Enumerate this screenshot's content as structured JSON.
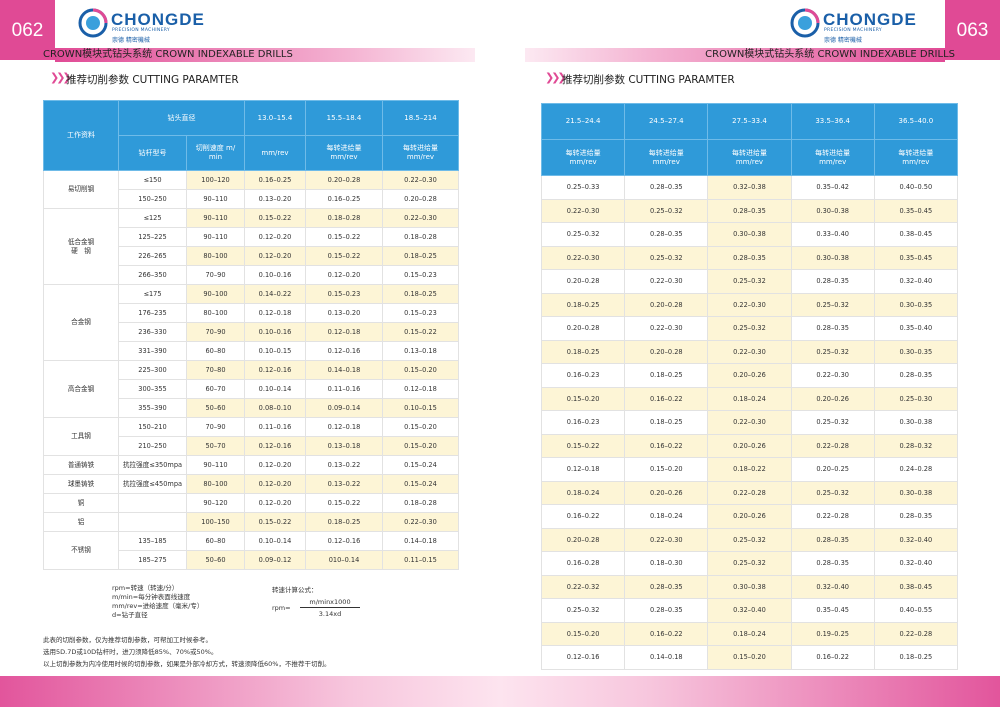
{
  "left": {
    "page_number": "062",
    "logo": {
      "brand": "CHONGDE",
      "tagline": "PRECISION MACHINERY",
      "cn": "崇德 精密機械"
    },
    "header_bar": "CROWN模块式钻头系统  CROWN INDEXABLE DRILLS",
    "section_title": "推荐切削参数 CUTTING PARAMTER",
    "table": {
      "header": {
        "material": "工作资料",
        "diameter": "钻头直径",
        "ranges": [
          "13.0–15.4",
          "15.5–18.4",
          "18.5–214"
        ],
        "shank": "钻杆型号",
        "speed": "切削速度 m/\nmin",
        "units": [
          "mm/rev",
          "每转进给量\nmm/rev",
          "每转进给量\nmm/rev"
        ]
      },
      "groups": [
        {
          "material": "易切削钢",
          "rows": [
            [
              "≤150",
              "100–120",
              "0.16–0.25",
              "0.20–0.28",
              "0.22–0.30"
            ],
            [
              "150–250",
              "90–110",
              "0.13–0.20",
              "0.16–0.25",
              "0.20–0.28"
            ]
          ]
        },
        {
          "material": "低合金钢\n硬　钢",
          "rows": [
            [
              "≤125",
              "90–110",
              "0.15–0.22",
              "0.18–0.28",
              "0.22–0.30"
            ],
            [
              "125–225",
              "90–110",
              "0.12–0.20",
              "0.15–0.22",
              "0.18–0.28"
            ],
            [
              "226–265",
              "80–100",
              "0.12–0.20",
              "0.15–0.22",
              "0.18–0.25"
            ],
            [
              "266–350",
              "70–90",
              "0.10–0.16",
              "0.12–0.20",
              "0.15–0.23"
            ]
          ]
        },
        {
          "material": "合金钢",
          "rows": [
            [
              "≤175",
              "90–100",
              "0.14–0.22",
              "0.15–0.23",
              "0.18–0.25"
            ],
            [
              "176–235",
              "80–100",
              "0.12–0.18",
              "0.13–0.20",
              "0.15–0.23"
            ],
            [
              "236–330",
              "70–90",
              "0.10–0.16",
              "0.12–0.18",
              "0.15–0.22"
            ],
            [
              "331–390",
              "60–80",
              "0.10–0.15",
              "0.12–0.16",
              "0.13–0.18"
            ]
          ]
        },
        {
          "material": "高合金钢",
          "rows": [
            [
              "225–300",
              "70–80",
              "0.12–0.16",
              "0.14–0.18",
              "0.15–0.20"
            ],
            [
              "300–355",
              "60–70",
              "0.10–0.14",
              "0.11–0.16",
              "0.12–0.18"
            ],
            [
              "355–390",
              "50–60",
              "0.08–0.10",
              "0.09–0.14",
              "0.10–0.15"
            ]
          ]
        },
        {
          "material": "工具钢",
          "rows": [
            [
              "150–210",
              "70–90",
              "0.11–0.16",
              "0.12–0.18",
              "0.15–0.20"
            ],
            [
              "210–250",
              "50–70",
              "0.12–0.16",
              "0.13–0.18",
              "0.15–0.20"
            ]
          ]
        },
        {
          "material": "普通铸铁",
          "rows": [
            [
              "抗拉强度≤350mpa",
              "90–110",
              "0.12–0.20",
              "0.13–0.22",
              "0.15–0.24"
            ]
          ]
        },
        {
          "material": "球墨铸铁",
          "rows": [
            [
              "抗拉强度≤450mpa",
              "80–100",
              "0.12–0.20",
              "0.13–0.22",
              "0.15–0.24"
            ]
          ]
        },
        {
          "material": "铜",
          "rows": [
            [
              null,
              "90–120",
              "0.12–0.20",
              "0.15–0.22",
              "0.18–0.28"
            ]
          ]
        },
        {
          "material": "铝",
          "rows": [
            [
              null,
              "100–150",
              "0.15–0.22",
              "0.18–0.25",
              "0.22–0.30"
            ]
          ]
        },
        {
          "material": "不锈钢",
          "rows": [
            [
              "135–185",
              "60–80",
              "0.10–0.14",
              "0.12–0.16",
              "0.14–0.18"
            ],
            [
              "185–275",
              "50–60",
              "0.09–0.12",
              "010–0.14",
              "0.11–0.15"
            ]
          ]
        }
      ]
    },
    "legend": [
      "rpm=转速（转速/分）",
      "m/min=每分钟表面线速度",
      "mm/rev=进给速度（毫米/专）",
      "d=钻子直径"
    ],
    "formula": {
      "label": "转速计算公式：",
      "lhs": "rpm=",
      "numerator": "m/minx1000",
      "denominator": "3.14xd"
    },
    "notes": [
      "此表的切削参数，仅为推荐切削参数，可帮加工时候参考。",
      "选用5D.7D或10D钻杆时，进刀须降低85%、70%或50%。",
      "以上切削参数为内冷使用时候的切削参数，如果是外部冷却方式，转速须降低60%，不推荐干切削。"
    ]
  },
  "right": {
    "page_number": "063",
    "logo": {
      "brand": "CHONGDE",
      "tagline": "PRECISION MACHINERY",
      "cn": "崇德 精密機械"
    },
    "header_bar": "CROWN模块式钻头系统  CROWN INDEXABLE DRILLS",
    "section_title": "推荐切削参数 CUTTING PARAMTER",
    "table": {
      "ranges": [
        "21.5–24.4",
        "24.5–27.4",
        "27.5–33.4",
        "33.5–36.4",
        "36.5–40.0"
      ],
      "units": [
        "每转进给量\nmm/rev",
        "每转进给量\nmm/rev",
        "每转进给量\nmm/rev",
        "每转进给量\nmm/rev",
        "每转进给量\nmm/rev"
      ],
      "rows": [
        [
          "0.25–0.33",
          "0.28–0.35",
          "0.32–0.38",
          "0.35–0.42",
          "0.40–0.50"
        ],
        [
          "0.22–0.30",
          "0.25–0.32",
          "0.28–0.35",
          "0.30–0.38",
          "0.35–0.45"
        ],
        [
          "0.25–0.32",
          "0.28–0.35",
          "0.30–0.38",
          "0.33–0.40",
          "0.38–0.45"
        ],
        [
          "0.22–0.30",
          "0.25–0.32",
          "0.28–0.35",
          "0.30–0.38",
          "0.35–0.45"
        ],
        [
          "0.20–0.28",
          "0.22–0.30",
          "0.25–0.32",
          "0.28–0.35",
          "0.32–0.40"
        ],
        [
          "0.18–0.25",
          "0.20–0.28",
          "0.22–0.30",
          "0.25–0.32",
          "0.30–0.35"
        ],
        [
          "0.20–0.28",
          "0.22–0.30",
          "0.25–0.32",
          "0.28–0.35",
          "0.35–0.40"
        ],
        [
          "0.18–0.25",
          "0.20–0.28",
          "0.22–0.30",
          "0.25–0.32",
          "0.30–0.35"
        ],
        [
          "0.16–0.23",
          "0.18–0.25",
          "0.20–0.26",
          "0.22–0.30",
          "0.28–0.35"
        ],
        [
          "0.15–0.20",
          "0.16–0.22",
          "0.18–0.24",
          "0.20–0.26",
          "0.25–0.30"
        ],
        [
          "0.16–0.23",
          "0.18–0.25",
          "0.22–0.30",
          "0.25–0.32",
          "0.30–0.38"
        ],
        [
          "0.15–0.22",
          "0.16–0.22",
          "0.20–0.26",
          "0.22–0.28",
          "0.28–0.32"
        ],
        [
          "0.12–0.18",
          "0.15–0.20",
          "0.18–0.22",
          "0.20–0.25",
          "0.24–0.28"
        ],
        [
          "0.18–0.24",
          "0.20–0.26",
          "0.22–0.28",
          "0.25–0.32",
          "0.30–0.38"
        ],
        [
          "0.16–0.22",
          "0.18–0.24",
          "0.20–0.26",
          "0.22–0.28",
          "0.28–0.35"
        ],
        [
          "0.20–0.28",
          "0.22–0.30",
          "0.25–0.32",
          "0.28–0.35",
          "0.32–0.40"
        ],
        [
          "0.16–0.28",
          "0.18–0.30",
          "0.25–0.32",
          "0.28–0.35",
          "0.32–0.40"
        ],
        [
          "0.22–0.32",
          "0.28–0.35",
          "0.30–0.38",
          "0.32–0.40",
          "0.38–0.45"
        ],
        [
          "0.25–0.32",
          "0.28–0.35",
          "0.32–0.40",
          "0.35–0.45",
          "0.40–0.55"
        ],
        [
          "0.15–0.20",
          "0.16–0.22",
          "0.18–0.24",
          "0.19–0.25",
          "0.22–0.28"
        ],
        [
          "0.12–0.16",
          "0.14–0.18",
          "0.15–0.20",
          "0.16–0.22",
          "0.18–0.25"
        ]
      ]
    }
  }
}
